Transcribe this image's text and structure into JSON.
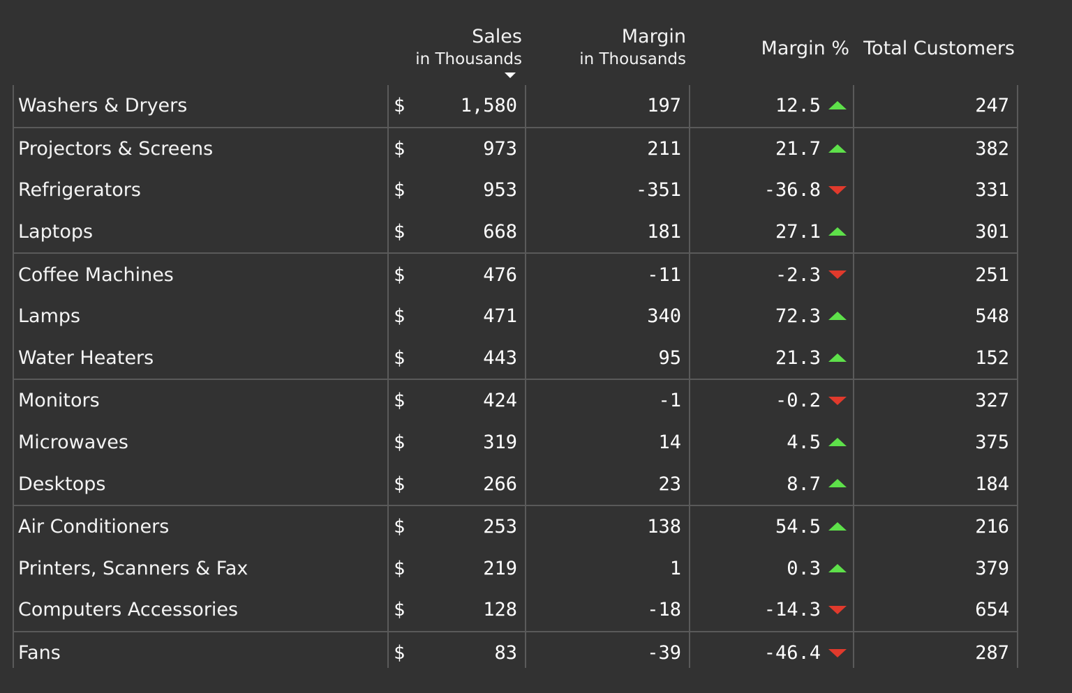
{
  "header": {
    "columns": [
      {
        "key": "product",
        "label": "",
        "sub": ""
      },
      {
        "key": "sales",
        "label": "Sales",
        "sub": "in Thousands",
        "sorted": "desc"
      },
      {
        "key": "margin",
        "label": "Margin",
        "sub": "in Thousands"
      },
      {
        "key": "margin_pct",
        "label": "Margin %",
        "sub": ""
      },
      {
        "key": "customers",
        "label": "Total Customers",
        "sub": ""
      }
    ]
  },
  "currency_symbol": "$",
  "colors": {
    "background": "#323232",
    "grid": "#5a5a5a",
    "up": "#5ee04a",
    "down": "#e03a2c",
    "text": "#ffffff"
  },
  "rows": [
    {
      "product": "Washers & Dryers",
      "sales": "1,580",
      "margin": "197",
      "margin_pct": "12.5",
      "trend": "up",
      "customers": "247",
      "group": 0
    },
    {
      "product": "Projectors & Screens",
      "sales": "973",
      "margin": "211",
      "margin_pct": "21.7",
      "trend": "up",
      "customers": "382",
      "group": 1
    },
    {
      "product": "Refrigerators",
      "sales": "953",
      "margin": "-351",
      "margin_pct": "-36.8",
      "trend": "down",
      "customers": "331",
      "group": 1
    },
    {
      "product": "Laptops",
      "sales": "668",
      "margin": "181",
      "margin_pct": "27.1",
      "trend": "up",
      "customers": "301",
      "group": 1
    },
    {
      "product": "Coffee Machines",
      "sales": "476",
      "margin": "-11",
      "margin_pct": "-2.3",
      "trend": "down",
      "customers": "251",
      "group": 2
    },
    {
      "product": "Lamps",
      "sales": "471",
      "margin": "340",
      "margin_pct": "72.3",
      "trend": "up",
      "customers": "548",
      "group": 2
    },
    {
      "product": "Water Heaters",
      "sales": "443",
      "margin": "95",
      "margin_pct": "21.3",
      "trend": "up",
      "customers": "152",
      "group": 2
    },
    {
      "product": "Monitors",
      "sales": "424",
      "margin": "-1",
      "margin_pct": "-0.2",
      "trend": "down",
      "customers": "327",
      "group": 3
    },
    {
      "product": "Microwaves",
      "sales": "319",
      "margin": "14",
      "margin_pct": "4.5",
      "trend": "up",
      "customers": "375",
      "group": 3
    },
    {
      "product": "Desktops",
      "sales": "266",
      "margin": "23",
      "margin_pct": "8.7",
      "trend": "up",
      "customers": "184",
      "group": 3
    },
    {
      "product": "Air Conditioners",
      "sales": "253",
      "margin": "138",
      "margin_pct": "54.5",
      "trend": "up",
      "customers": "216",
      "group": 4
    },
    {
      "product": "Printers, Scanners & Fax",
      "sales": "219",
      "margin": "1",
      "margin_pct": "0.3",
      "trend": "up",
      "customers": "379",
      "group": 4
    },
    {
      "product": "Computers Accessories",
      "sales": "128",
      "margin": "-18",
      "margin_pct": "-14.3",
      "trend": "down",
      "customers": "654",
      "group": 4
    },
    {
      "product": "Fans",
      "sales": "83",
      "margin": "-39",
      "margin_pct": "-46.4",
      "trend": "down",
      "customers": "287",
      "group": 5
    }
  ]
}
